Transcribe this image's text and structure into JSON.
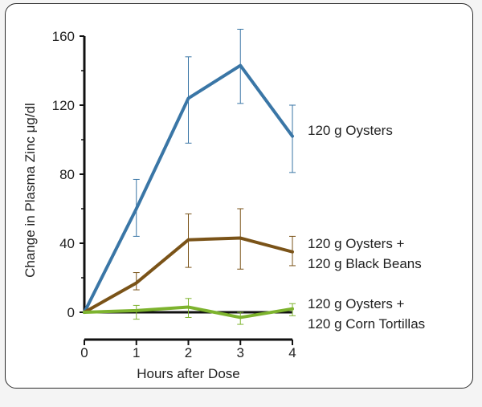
{
  "chart_data": {
    "type": "line",
    "title": "",
    "xlabel": "Hours after Dose",
    "ylabel": "Change in Plasma Zinc μg/dl",
    "x": [
      0,
      1,
      2,
      3,
      4
    ],
    "xlim": [
      0,
      4
    ],
    "ylim": [
      0,
      160
    ],
    "y_ticks": [
      0,
      40,
      80,
      120,
      160
    ],
    "x_ticks": [
      0,
      1,
      2,
      3,
      4
    ],
    "grid": false,
    "legend": "direct labels at right end of lines",
    "series": [
      {
        "name": "120 g Oysters",
        "label_lines": [
          "120 g Oysters"
        ],
        "color": "#3a76a6",
        "values": [
          0,
          60,
          124,
          143,
          102
        ],
        "err_low": [
          null,
          44,
          98,
          121,
          81
        ],
        "err_high": [
          null,
          77,
          148,
          164,
          120
        ]
      },
      {
        "name": "120 g Oysters + 120 g Black Beans",
        "label_lines": [
          "120 g Oysters +",
          "120 g Black Beans"
        ],
        "color": "#7a5318",
        "values": [
          0,
          17,
          42,
          43,
          35
        ],
        "err_low": [
          null,
          13,
          26,
          25,
          27
        ],
        "err_high": [
          null,
          23,
          57,
          60,
          44
        ]
      },
      {
        "name": "120 g Oysters + 120 g Corn Tortillas",
        "label_lines": [
          "120 g Oysters +",
          "120 g Corn Tortillas"
        ],
        "color": "#7db32e",
        "values": [
          0,
          1,
          3,
          -3,
          2
        ],
        "err_low": [
          null,
          -4,
          -3,
          -7,
          -2
        ],
        "err_high": [
          null,
          4,
          8,
          0,
          5
        ]
      }
    ]
  }
}
